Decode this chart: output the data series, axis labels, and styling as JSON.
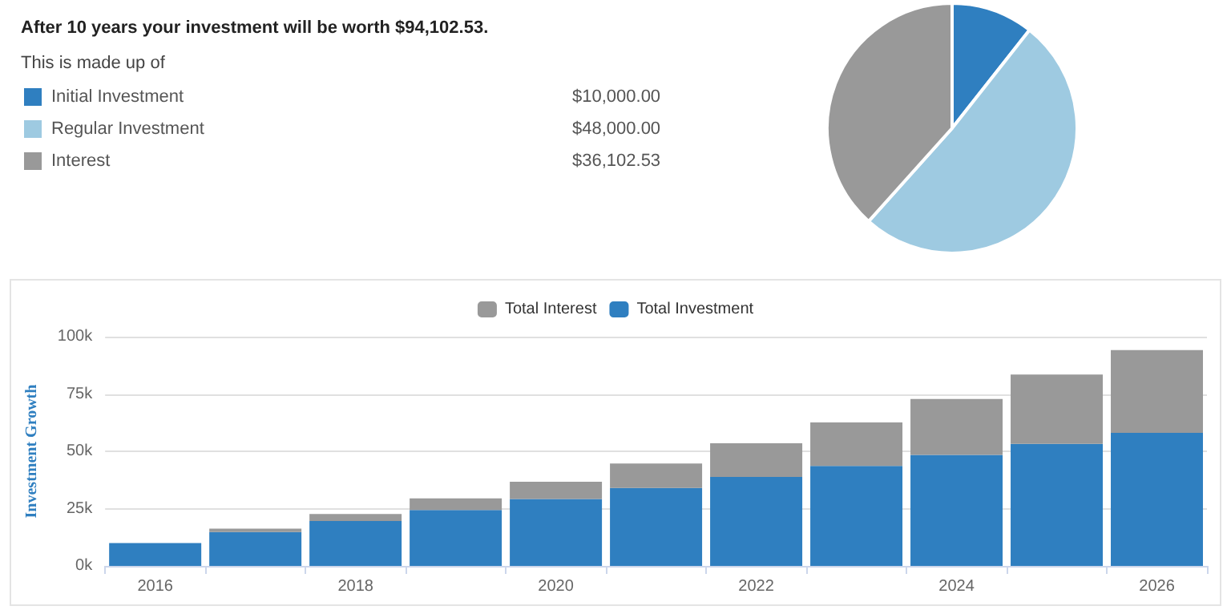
{
  "chart_data": [
    {
      "type": "pie",
      "title": "After 10 years your investment will be worth $94,102.53.",
      "subtitle": "This is made up of",
      "categories": [
        "Initial Investment",
        "Regular Investment",
        "Interest"
      ],
      "values": [
        10000,
        48000,
        36102.53
      ],
      "colors": [
        "#2f7fc0",
        "#9ecae1",
        "#999999"
      ],
      "value_labels": [
        "$10,000.00",
        "$48,000.00",
        "$36,102.53"
      ],
      "legend": "left"
    },
    {
      "type": "bar",
      "stacked": true,
      "categories": [
        "2016",
        null,
        "2018",
        null,
        "2020",
        null,
        "2022",
        null,
        "2024",
        null,
        "2026"
      ],
      "series": [
        {
          "name": "Total Investment",
          "color": "#2f7fc0",
          "values": [
            10000,
            14800,
            19600,
            24400,
            29200,
            34000,
            38800,
            43600,
            48400,
            53200,
            58000
          ]
        },
        {
          "name": "Total Interest",
          "color": "#999999",
          "values": [
            null,
            1500,
            3000,
            5100,
            7500,
            10700,
            14700,
            19000,
            24400,
            30300,
            36100
          ]
        }
      ],
      "ylim": [
        0,
        100000
      ],
      "yticks": [
        {
          "value": 0,
          "label": "0k"
        },
        {
          "value": 25000,
          "label": "25k"
        },
        {
          "value": 50000,
          "label": "50k"
        },
        {
          "value": 75000,
          "label": "75k"
        },
        {
          "value": 100000,
          "label": "100k"
        }
      ],
      "ylabel": "Investment Growth",
      "grid": "y",
      "legend": "top"
    }
  ]
}
